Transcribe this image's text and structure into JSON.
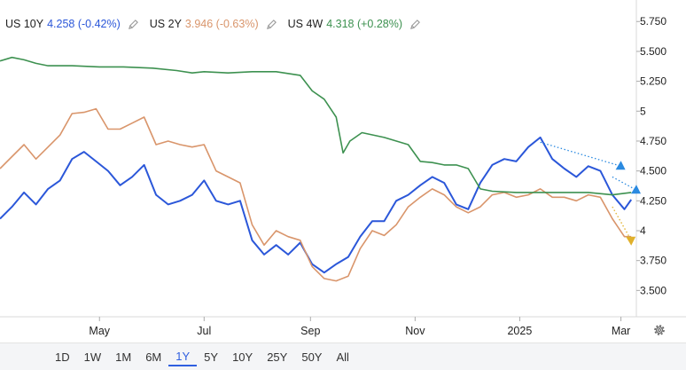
{
  "legend": [
    {
      "name": "US 10Y",
      "value": "4.258 (-0.42%)",
      "color": "#2b57d9"
    },
    {
      "name": "US 2Y",
      "value": "3.946 (-0.63%)",
      "color": "#d9956b"
    },
    {
      "name": "US 4W",
      "value": "4.318 (+0.28%)",
      "color": "#3d9150"
    }
  ],
  "range_buttons": [
    "1D",
    "1W",
    "1M",
    "6M",
    "1Y",
    "5Y",
    "10Y",
    "25Y",
    "50Y",
    "All"
  ],
  "active_range": "1Y",
  "chart_data": {
    "type": "line",
    "x_tick_labels": [
      "May",
      "Jul",
      "Sep",
      "Nov",
      "2025",
      "Mar"
    ],
    "y_tick_labels": [
      "5.750",
      "5.500",
      "5.250",
      "5",
      "4.750",
      "4.500",
      "4.250",
      "4",
      "3.750",
      "3.500"
    ],
    "y_ticks": [
      5.75,
      5.5,
      5.25,
      5.0,
      4.75,
      4.5,
      4.25,
      4.0,
      3.75,
      3.5
    ],
    "ylim": [
      3.28,
      5.93
    ],
    "xlim": [
      "2024-03-04",
      "2025-03-10"
    ],
    "x_ticks": [
      "2024-05-01",
      "2024-07-01",
      "2024-09-01",
      "2024-11-01",
      "2025-01-01",
      "2025-03-01"
    ],
    "series": [
      {
        "name": "US 10Y",
        "color": "#2b57d9",
        "points": [
          [
            "2024-03-04",
            4.1
          ],
          [
            "2024-03-11",
            4.2
          ],
          [
            "2024-03-18",
            4.32
          ],
          [
            "2024-03-25",
            4.22
          ],
          [
            "2024-04-01",
            4.35
          ],
          [
            "2024-04-08",
            4.42
          ],
          [
            "2024-04-15",
            4.6
          ],
          [
            "2024-04-22",
            4.66
          ],
          [
            "2024-04-29",
            4.58
          ],
          [
            "2024-05-06",
            4.5
          ],
          [
            "2024-05-13",
            4.38
          ],
          [
            "2024-05-20",
            4.45
          ],
          [
            "2024-05-27",
            4.55
          ],
          [
            "2024-06-03",
            4.3
          ],
          [
            "2024-06-10",
            4.22
          ],
          [
            "2024-06-17",
            4.25
          ],
          [
            "2024-06-24",
            4.3
          ],
          [
            "2024-07-01",
            4.42
          ],
          [
            "2024-07-08",
            4.25
          ],
          [
            "2024-07-15",
            4.22
          ],
          [
            "2024-07-22",
            4.25
          ],
          [
            "2024-07-29",
            3.92
          ],
          [
            "2024-08-05",
            3.8
          ],
          [
            "2024-08-12",
            3.88
          ],
          [
            "2024-08-19",
            3.8
          ],
          [
            "2024-08-26",
            3.9
          ],
          [
            "2024-09-02",
            3.72
          ],
          [
            "2024-09-09",
            3.65
          ],
          [
            "2024-09-16",
            3.72
          ],
          [
            "2024-09-23",
            3.78
          ],
          [
            "2024-09-30",
            3.95
          ],
          [
            "2024-10-07",
            4.08
          ],
          [
            "2024-10-14",
            4.08
          ],
          [
            "2024-10-21",
            4.25
          ],
          [
            "2024-10-28",
            4.3
          ],
          [
            "2024-11-04",
            4.38
          ],
          [
            "2024-11-11",
            4.45
          ],
          [
            "2024-11-18",
            4.4
          ],
          [
            "2024-11-25",
            4.22
          ],
          [
            "2024-12-02",
            4.18
          ],
          [
            "2024-12-09",
            4.4
          ],
          [
            "2024-12-16",
            4.55
          ],
          [
            "2024-12-23",
            4.6
          ],
          [
            "2024-12-30",
            4.58
          ],
          [
            "2025-01-06",
            4.7
          ],
          [
            "2025-01-13",
            4.78
          ],
          [
            "2025-01-20",
            4.6
          ],
          [
            "2025-01-27",
            4.52
          ],
          [
            "2025-02-03",
            4.45
          ],
          [
            "2025-02-10",
            4.54
          ],
          [
            "2025-02-17",
            4.5
          ],
          [
            "2025-02-24",
            4.3
          ],
          [
            "2025-03-03",
            4.18
          ],
          [
            "2025-03-07",
            4.26
          ]
        ]
      },
      {
        "name": "US 2Y",
        "color": "#d9956b",
        "points": [
          [
            "2024-03-04",
            4.52
          ],
          [
            "2024-03-11",
            4.62
          ],
          [
            "2024-03-18",
            4.72
          ],
          [
            "2024-03-25",
            4.6
          ],
          [
            "2024-04-01",
            4.7
          ],
          [
            "2024-04-08",
            4.8
          ],
          [
            "2024-04-15",
            4.98
          ],
          [
            "2024-04-22",
            4.99
          ],
          [
            "2024-04-29",
            5.02
          ],
          [
            "2024-05-06",
            4.85
          ],
          [
            "2024-05-13",
            4.85
          ],
          [
            "2024-05-20",
            4.9
          ],
          [
            "2024-05-27",
            4.95
          ],
          [
            "2024-06-03",
            4.72
          ],
          [
            "2024-06-10",
            4.75
          ],
          [
            "2024-06-17",
            4.72
          ],
          [
            "2024-06-24",
            4.7
          ],
          [
            "2024-07-01",
            4.72
          ],
          [
            "2024-07-08",
            4.5
          ],
          [
            "2024-07-15",
            4.45
          ],
          [
            "2024-07-22",
            4.4
          ],
          [
            "2024-07-29",
            4.05
          ],
          [
            "2024-08-05",
            3.88
          ],
          [
            "2024-08-12",
            4.0
          ],
          [
            "2024-08-19",
            3.95
          ],
          [
            "2024-08-26",
            3.92
          ],
          [
            "2024-09-02",
            3.7
          ],
          [
            "2024-09-09",
            3.6
          ],
          [
            "2024-09-16",
            3.58
          ],
          [
            "2024-09-23",
            3.62
          ],
          [
            "2024-09-30",
            3.85
          ],
          [
            "2024-10-07",
            4.0
          ],
          [
            "2024-10-14",
            3.96
          ],
          [
            "2024-10-21",
            4.05
          ],
          [
            "2024-10-28",
            4.2
          ],
          [
            "2024-11-04",
            4.28
          ],
          [
            "2024-11-11",
            4.35
          ],
          [
            "2024-11-18",
            4.3
          ],
          [
            "2024-11-25",
            4.2
          ],
          [
            "2024-12-02",
            4.15
          ],
          [
            "2024-12-09",
            4.2
          ],
          [
            "2024-12-16",
            4.3
          ],
          [
            "2024-12-23",
            4.32
          ],
          [
            "2024-12-30",
            4.28
          ],
          [
            "2025-01-06",
            4.3
          ],
          [
            "2025-01-13",
            4.35
          ],
          [
            "2025-01-20",
            4.28
          ],
          [
            "2025-01-27",
            4.28
          ],
          [
            "2025-02-03",
            4.25
          ],
          [
            "2025-02-10",
            4.3
          ],
          [
            "2025-02-17",
            4.28
          ],
          [
            "2025-02-24",
            4.1
          ],
          [
            "2025-03-03",
            3.95
          ],
          [
            "2025-03-07",
            3.95
          ]
        ]
      },
      {
        "name": "US 4W",
        "color": "#3d9150",
        "points": [
          [
            "2024-03-04",
            5.42
          ],
          [
            "2024-03-11",
            5.45
          ],
          [
            "2024-03-18",
            5.43
          ],
          [
            "2024-03-25",
            5.4
          ],
          [
            "2024-04-01",
            5.38
          ],
          [
            "2024-04-15",
            5.38
          ],
          [
            "2024-05-01",
            5.37
          ],
          [
            "2024-05-15",
            5.37
          ],
          [
            "2024-06-01",
            5.36
          ],
          [
            "2024-06-15",
            5.34
          ],
          [
            "2024-06-24",
            5.32
          ],
          [
            "2024-07-01",
            5.33
          ],
          [
            "2024-07-15",
            5.32
          ],
          [
            "2024-07-29",
            5.33
          ],
          [
            "2024-08-12",
            5.33
          ],
          [
            "2024-08-26",
            5.3
          ],
          [
            "2024-09-02",
            5.17
          ],
          [
            "2024-09-09",
            5.1
          ],
          [
            "2024-09-16",
            4.95
          ],
          [
            "2024-09-20",
            4.65
          ],
          [
            "2024-09-24",
            4.75
          ],
          [
            "2024-10-01",
            4.82
          ],
          [
            "2024-10-14",
            4.78
          ],
          [
            "2024-10-28",
            4.72
          ],
          [
            "2024-11-04",
            4.58
          ],
          [
            "2024-11-11",
            4.57
          ],
          [
            "2024-11-18",
            4.55
          ],
          [
            "2024-11-25",
            4.55
          ],
          [
            "2024-12-02",
            4.52
          ],
          [
            "2024-12-09",
            4.35
          ],
          [
            "2024-12-16",
            4.33
          ],
          [
            "2024-12-30",
            4.32
          ],
          [
            "2025-01-13",
            4.32
          ],
          [
            "2025-01-27",
            4.32
          ],
          [
            "2025-02-10",
            4.32
          ],
          [
            "2025-02-24",
            4.3
          ],
          [
            "2025-03-07",
            4.32
          ]
        ]
      }
    ],
    "annotations": [
      {
        "type": "dotted-arrow",
        "color": "#2b8ae0",
        "from": [
          "2025-01-13",
          4.74
        ],
        "to": [
          "2025-03-01",
          4.54
        ],
        "marker": "up-triangle"
      },
      {
        "type": "dotted-arrow",
        "color": "#2b8ae0",
        "from": [
          "2025-02-24",
          4.45
        ],
        "to": [
          "2025-03-10",
          4.34
        ],
        "marker": "up-triangle"
      },
      {
        "type": "dotted-arrow",
        "color": "#e0b02b",
        "from": [
          "2025-02-24",
          4.2
        ],
        "to": [
          "2025-03-07",
          3.92
        ],
        "marker": "down-triangle"
      }
    ]
  }
}
